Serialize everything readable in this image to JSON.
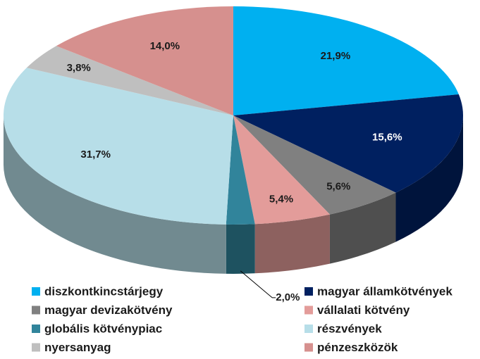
{
  "chart_data": {
    "type": "pie3d",
    "categories": [
      "diszkontkincstárjegy",
      "magyar államkötvények",
      "magyar devizakötvény",
      "vállalati kötvény",
      "globális kötvénypiac",
      "részvények",
      "nyersanyag",
      "pénzeszközök"
    ],
    "values": [
      21.9,
      15.6,
      5.6,
      5.4,
      2.0,
      31.7,
      3.8,
      14.0
    ],
    "value_labels": [
      "21,9%",
      "15,6%",
      "5,6%",
      "5,4%",
      "2,0%",
      "31,7%",
      "3,8%",
      "14,0%"
    ],
    "colors": [
      "#00b0f0",
      "#002060",
      "#808080",
      "#e39c9a",
      "#31849b",
      "#b7dee8",
      "#bfbfbf",
      "#d6908e"
    ],
    "legend": "bottom"
  }
}
